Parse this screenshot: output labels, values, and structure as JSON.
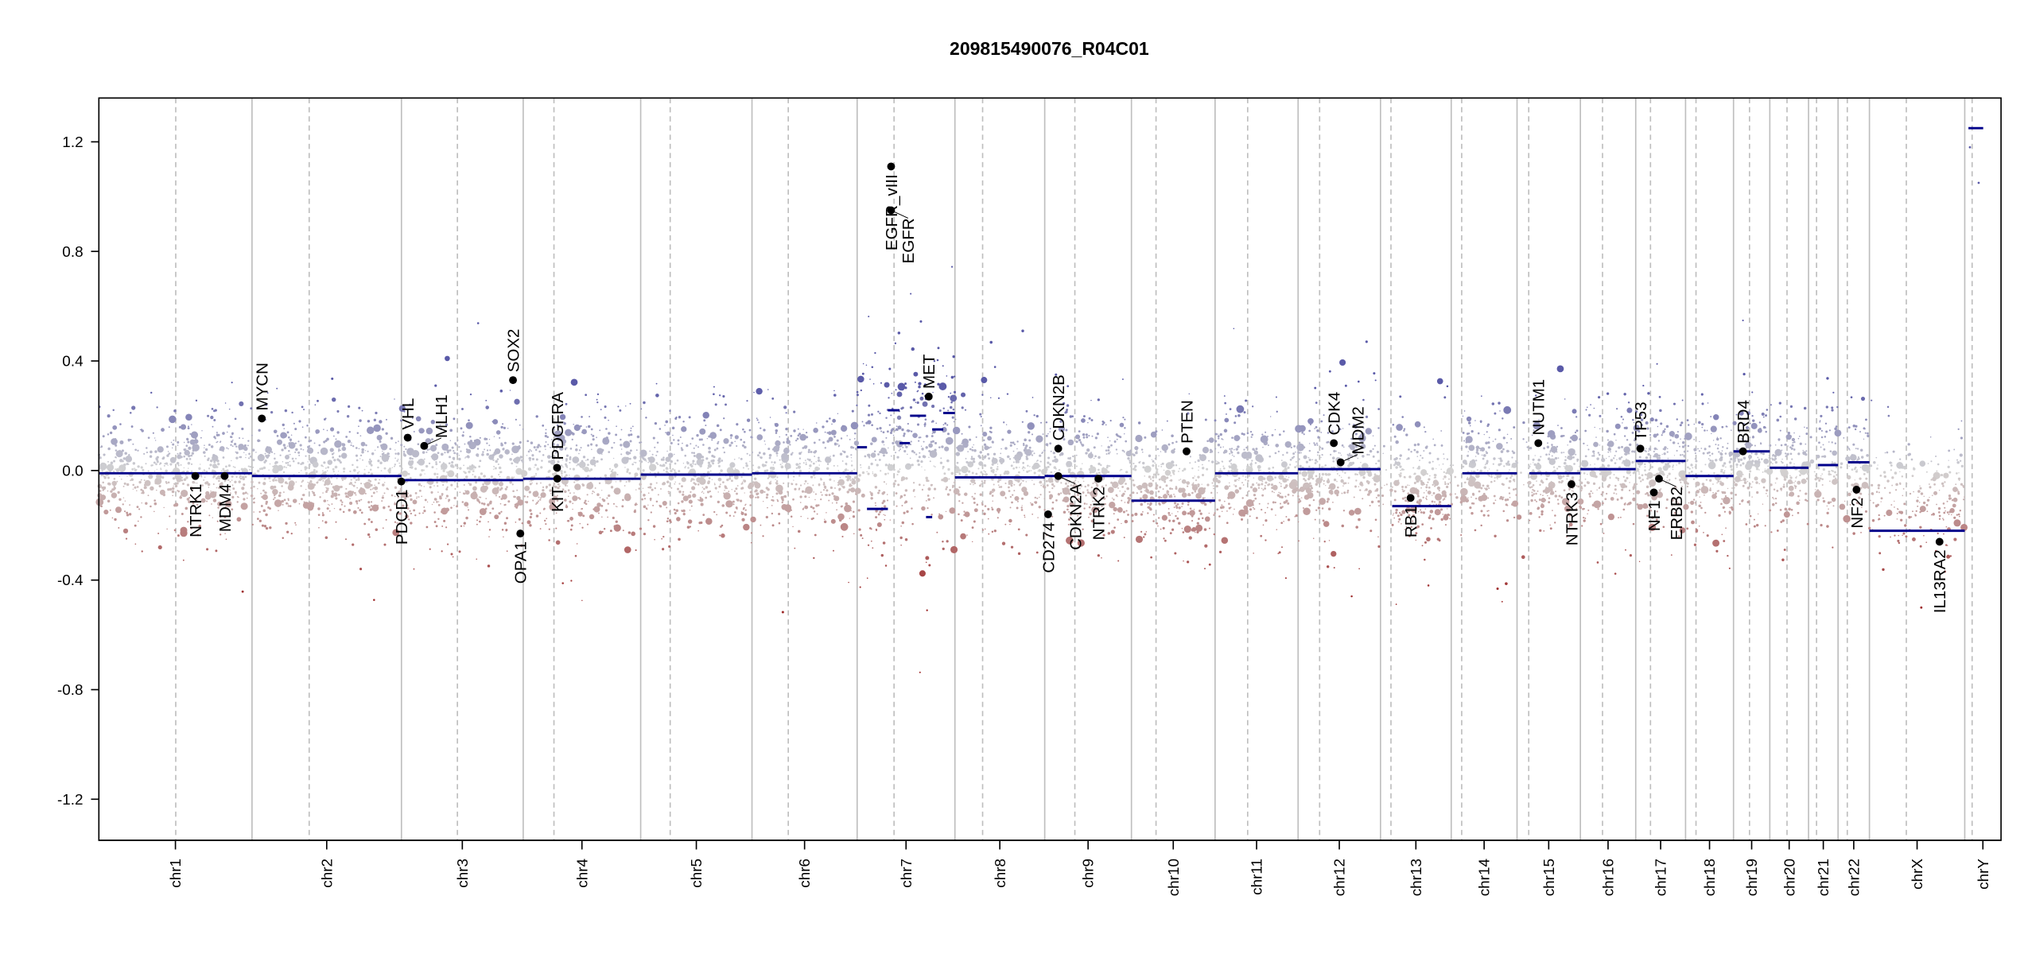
{
  "chart_data": {
    "type": "scatter",
    "title": "209815490076_R04C01",
    "xlabel": "",
    "ylabel": "",
    "ylim": [
      -1.35,
      1.36
    ],
    "yticks": [
      -1.2,
      -0.8,
      -0.4,
      0.0,
      0.4,
      0.8,
      1.2
    ],
    "ytick_labels": [
      "-1.2",
      "-0.8",
      "-0.4",
      "0.0",
      "0.4",
      "0.8",
      "1.2"
    ],
    "grid": false,
    "colors": {
      "gain": "#5a5aa8",
      "neutral": "#d3d3d3",
      "loss": "#9e2a2a",
      "segment": "#00008b",
      "chrom_line": "#bebebe",
      "gene_point": "#000000"
    },
    "chromosomes": [
      {
        "name": "chr1",
        "length_mb": 249,
        "centromere_mb": 125
      },
      {
        "name": "chr2",
        "length_mb": 243,
        "centromere_mb": 93
      },
      {
        "name": "chr3",
        "length_mb": 198,
        "centromere_mb": 91
      },
      {
        "name": "chr4",
        "length_mb": 191,
        "centromere_mb": 50
      },
      {
        "name": "chr5",
        "length_mb": 181,
        "centromere_mb": 48
      },
      {
        "name": "chr6",
        "length_mb": 171,
        "centromere_mb": 59
      },
      {
        "name": "chr7",
        "length_mb": 159,
        "centromere_mb": 60
      },
      {
        "name": "chr8",
        "length_mb": 146,
        "centromere_mb": 45
      },
      {
        "name": "chr9",
        "length_mb": 141,
        "centromere_mb": 49
      },
      {
        "name": "chr10",
        "length_mb": 136,
        "centromere_mb": 40
      },
      {
        "name": "chr11",
        "length_mb": 135,
        "centromere_mb": 53
      },
      {
        "name": "chr12",
        "length_mb": 134,
        "centromere_mb": 35
      },
      {
        "name": "chr13",
        "length_mb": 115,
        "centromere_mb": 17
      },
      {
        "name": "chr14",
        "length_mb": 107,
        "centromere_mb": 17
      },
      {
        "name": "chr15",
        "length_mb": 103,
        "centromere_mb": 19
      },
      {
        "name": "chr16",
        "length_mb": 90,
        "centromere_mb": 36
      },
      {
        "name": "chr17",
        "length_mb": 81,
        "centromere_mb": 24
      },
      {
        "name": "chr18",
        "length_mb": 78,
        "centromere_mb": 17
      },
      {
        "name": "chr19",
        "length_mb": 59,
        "centromere_mb": 26
      },
      {
        "name": "chr20",
        "length_mb": 63,
        "centromere_mb": 28
      },
      {
        "name": "chr21",
        "length_mb": 48,
        "centromere_mb": 13
      },
      {
        "name": "chr22",
        "length_mb": 51,
        "centromere_mb": 15
      },
      {
        "name": "chrX",
        "length_mb": 155,
        "centromere_mb": 60
      },
      {
        "name": "chrY",
        "length_mb": 59,
        "centromere_mb": 12
      }
    ],
    "segments": [
      {
        "chr": "chr1",
        "start_mb": 0,
        "end_mb": 249,
        "value": -0.01
      },
      {
        "chr": "chr2",
        "start_mb": 0,
        "end_mb": 243,
        "value": -0.02
      },
      {
        "chr": "chr3",
        "start_mb": 0,
        "end_mb": 198,
        "value": -0.035
      },
      {
        "chr": "chr4",
        "start_mb": 0,
        "end_mb": 191,
        "value": -0.03
      },
      {
        "chr": "chr5",
        "start_mb": 0,
        "end_mb": 181,
        "value": -0.015
      },
      {
        "chr": "chr6",
        "start_mb": 0,
        "end_mb": 171,
        "value": -0.01
      },
      {
        "chr": "chr7",
        "start_mb": 0,
        "end_mb": 16,
        "value": 0.085
      },
      {
        "chr": "chr7",
        "start_mb": 16,
        "end_mb": 50,
        "value": -0.14
      },
      {
        "chr": "chr7",
        "start_mb": 50,
        "end_mb": 69,
        "value": 0.22
      },
      {
        "chr": "chr7",
        "start_mb": 69,
        "end_mb": 86,
        "value": 0.1
      },
      {
        "chr": "chr7",
        "start_mb": 86,
        "end_mb": 112,
        "value": 0.2
      },
      {
        "chr": "chr7",
        "start_mb": 112,
        "end_mb": 122,
        "value": -0.17
      },
      {
        "chr": "chr7",
        "start_mb": 122,
        "end_mb": 140,
        "value": 0.15
      },
      {
        "chr": "chr7",
        "start_mb": 140,
        "end_mb": 159,
        "value": 0.21
      },
      {
        "chr": "chr8",
        "start_mb": 0,
        "end_mb": 146,
        "value": -0.025
      },
      {
        "chr": "chr9",
        "start_mb": 0,
        "end_mb": 141,
        "value": -0.02
      },
      {
        "chr": "chr10",
        "start_mb": 0,
        "end_mb": 136,
        "value": -0.11
      },
      {
        "chr": "chr11",
        "start_mb": 0,
        "end_mb": 135,
        "value": -0.01
      },
      {
        "chr": "chr12",
        "start_mb": 0,
        "end_mb": 134,
        "value": 0.005
      },
      {
        "chr": "chr13",
        "start_mb": 19,
        "end_mb": 115,
        "value": -0.13
      },
      {
        "chr": "chr14",
        "start_mb": 18,
        "end_mb": 107,
        "value": -0.01
      },
      {
        "chr": "chr15",
        "start_mb": 20,
        "end_mb": 103,
        "value": -0.01
      },
      {
        "chr": "chr16",
        "start_mb": 0,
        "end_mb": 90,
        "value": 0.005
      },
      {
        "chr": "chr17",
        "start_mb": 0,
        "end_mb": 81,
        "value": 0.035
      },
      {
        "chr": "chr18",
        "start_mb": 0,
        "end_mb": 78,
        "value": -0.02
      },
      {
        "chr": "chr19",
        "start_mb": 0,
        "end_mb": 59,
        "value": 0.07
      },
      {
        "chr": "chr20",
        "start_mb": 0,
        "end_mb": 63,
        "value": 0.01
      },
      {
        "chr": "chr21",
        "start_mb": 15,
        "end_mb": 48,
        "value": 0.02
      },
      {
        "chr": "chr22",
        "start_mb": 16,
        "end_mb": 51,
        "value": 0.03
      },
      {
        "chr": "chrX",
        "start_mb": 0,
        "end_mb": 155,
        "value": -0.22
      },
      {
        "chr": "chrY",
        "start_mb": 6,
        "end_mb": 30,
        "value": 1.25
      }
    ],
    "genes": [
      {
        "name": "NTRK1",
        "chr": "chr1",
        "pos_mb": 156.8,
        "value": -0.02
      },
      {
        "name": "MDM4",
        "chr": "chr1",
        "pos_mb": 204.5,
        "value": -0.02
      },
      {
        "name": "MYCN",
        "chr": "chr2",
        "pos_mb": 16,
        "value": 0.19
      },
      {
        "name": "PDCD1",
        "chr": "chr2",
        "pos_mb": 242.8,
        "value": -0.04
      },
      {
        "name": "VHL",
        "chr": "chr3",
        "pos_mb": 10.2,
        "value": 0.12
      },
      {
        "name": "MLH1",
        "chr": "chr3",
        "pos_mb": 37,
        "value": 0.09
      },
      {
        "name": "SOX2",
        "chr": "chr3",
        "pos_mb": 181.4,
        "value": 0.33
      },
      {
        "name": "OPA1",
        "chr": "chr3",
        "pos_mb": 193.3,
        "value": -0.23
      },
      {
        "name": "PDGFRA",
        "chr": "chr4",
        "pos_mb": 55,
        "value": 0.01
      },
      {
        "name": "KIT",
        "chr": "chr4",
        "pos_mb": 55.5,
        "value": -0.03
      },
      {
        "name": "EGFR_vIII",
        "chr": "chr7",
        "pos_mb": 55.2,
        "value": 1.11,
        "label_side": "below"
      },
      {
        "name": "EGFR",
        "chr": "chr7",
        "pos_mb": 55.2,
        "value": 0.95,
        "label_side": "below"
      },
      {
        "name": "MET",
        "chr": "chr7",
        "pos_mb": 116.4,
        "value": 0.27
      },
      {
        "name": "CD274",
        "chr": "chr9",
        "pos_mb": 5.5,
        "value": -0.16
      },
      {
        "name": "CDKN2A",
        "chr": "chr9",
        "pos_mb": 21.97,
        "value": -0.02
      },
      {
        "name": "CDKN2B",
        "chr": "chr9",
        "pos_mb": 22.0,
        "value": 0.08
      },
      {
        "name": "NTRK2",
        "chr": "chr9",
        "pos_mb": 87.3,
        "value": -0.03
      },
      {
        "name": "PTEN",
        "chr": "chr10",
        "pos_mb": 89.6,
        "value": 0.07
      },
      {
        "name": "CDK4",
        "chr": "chr12",
        "pos_mb": 58.1,
        "value": 0.1
      },
      {
        "name": "MDM2",
        "chr": "chr12",
        "pos_mb": 69.2,
        "value": 0.03
      },
      {
        "name": "RB1",
        "chr": "chr13",
        "pos_mb": 48.9,
        "value": -0.1
      },
      {
        "name": "NUTM1",
        "chr": "chr15",
        "pos_mb": 34.6,
        "value": 0.1
      },
      {
        "name": "NTRK3",
        "chr": "chr15",
        "pos_mb": 88.5,
        "value": -0.05
      },
      {
        "name": "TP53",
        "chr": "chr17",
        "pos_mb": 7.5,
        "value": 0.08
      },
      {
        "name": "NF1",
        "chr": "chr17",
        "pos_mb": 29.5,
        "value": -0.08
      },
      {
        "name": "ERBB2",
        "chr": "chr17",
        "pos_mb": 37.8,
        "value": -0.03
      },
      {
        "name": "BRD4",
        "chr": "chr19",
        "pos_mb": 15.4,
        "value": 0.07
      },
      {
        "name": "NF2",
        "chr": "chr22",
        "pos_mb": 30,
        "value": -0.07
      },
      {
        "name": "IL13RA2",
        "chr": "chrX",
        "pos_mb": 114,
        "value": -0.26
      }
    ]
  }
}
